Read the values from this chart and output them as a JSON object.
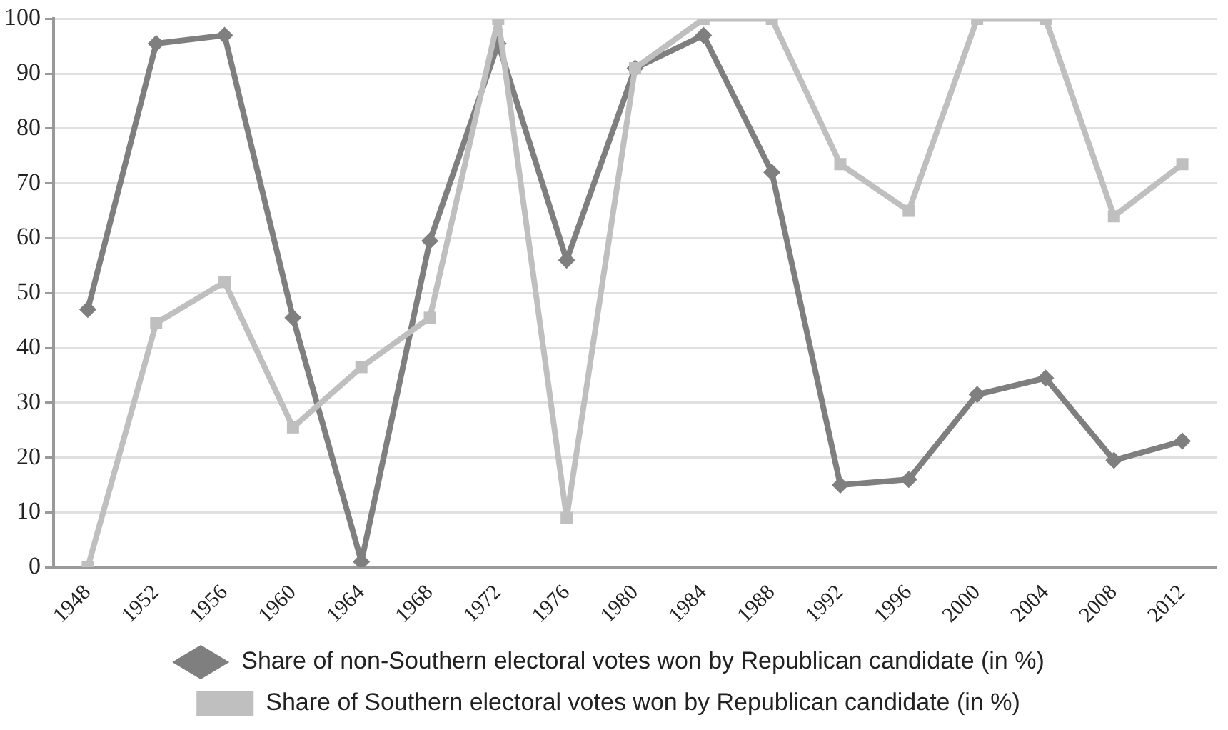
{
  "chart_data": {
    "type": "line",
    "categories": [
      "1948",
      "1952",
      "1956",
      "1960",
      "1964",
      "1968",
      "1972",
      "1976",
      "1980",
      "1984",
      "1988",
      "1992",
      "1996",
      "2000",
      "2004",
      "2008",
      "2012"
    ],
    "series": [
      {
        "name": "Share of non-Southern electoral votes won by Republican candidate (in %)",
        "color": "#7f7f7f",
        "marker": "diamond",
        "values": [
          47,
          95.5,
          97,
          45.5,
          1,
          59.5,
          95.5,
          56,
          91,
          97,
          72,
          15,
          16,
          31.5,
          34.5,
          19.5,
          23
        ]
      },
      {
        "name": "Share of Southern electoral votes won by Republican candidate (in %)",
        "color": "#bfbfbf",
        "marker": "square",
        "values": [
          0,
          44.5,
          52,
          25.5,
          36.5,
          45.5,
          100,
          9,
          91,
          100,
          100,
          73.5,
          65,
          100,
          100,
          64,
          73.5
        ]
      }
    ],
    "ylim": [
      0,
      100
    ],
    "yticks": [
      0,
      10,
      20,
      30,
      40,
      50,
      60,
      70,
      80,
      90,
      100
    ],
    "grid": "y",
    "legend": "bottom",
    "line_style": "solid"
  }
}
